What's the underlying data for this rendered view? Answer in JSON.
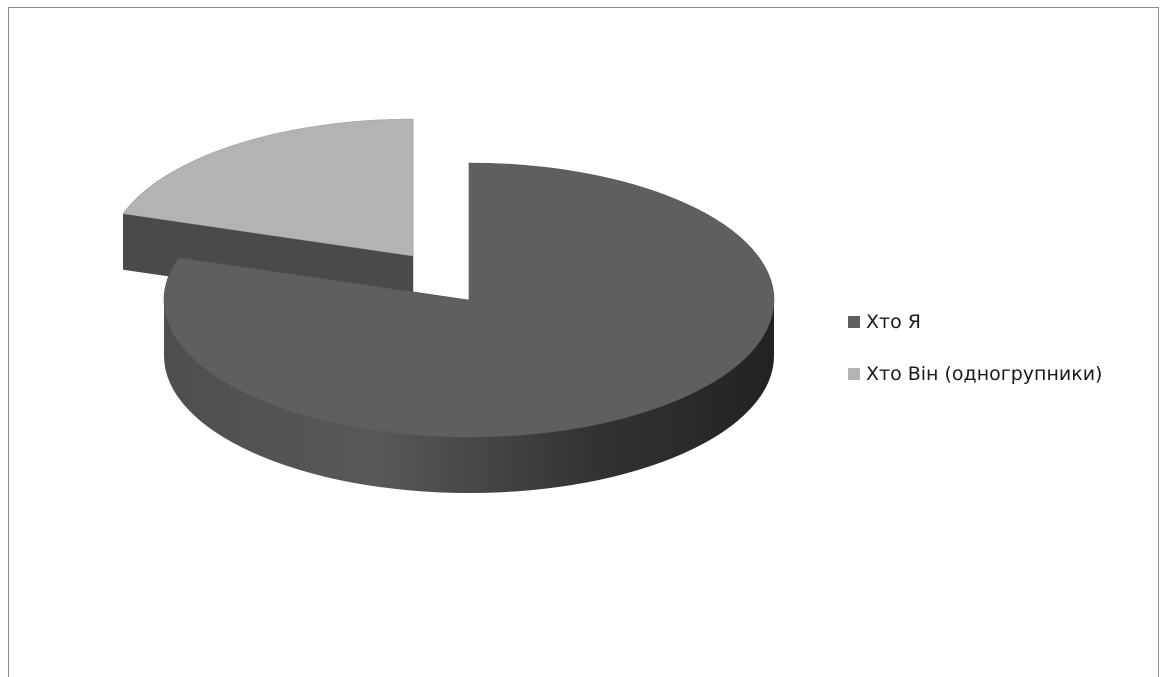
{
  "chart_data": {
    "type": "pie",
    "style": "3d-exploded",
    "categories": [
      "Хто Я",
      "Хто Він (одногрупники)"
    ],
    "values": [
      80,
      20
    ],
    "colors": [
      "#5f5f5f",
      "#b3b3b3"
    ],
    "legend_position": "right",
    "title": ""
  }
}
